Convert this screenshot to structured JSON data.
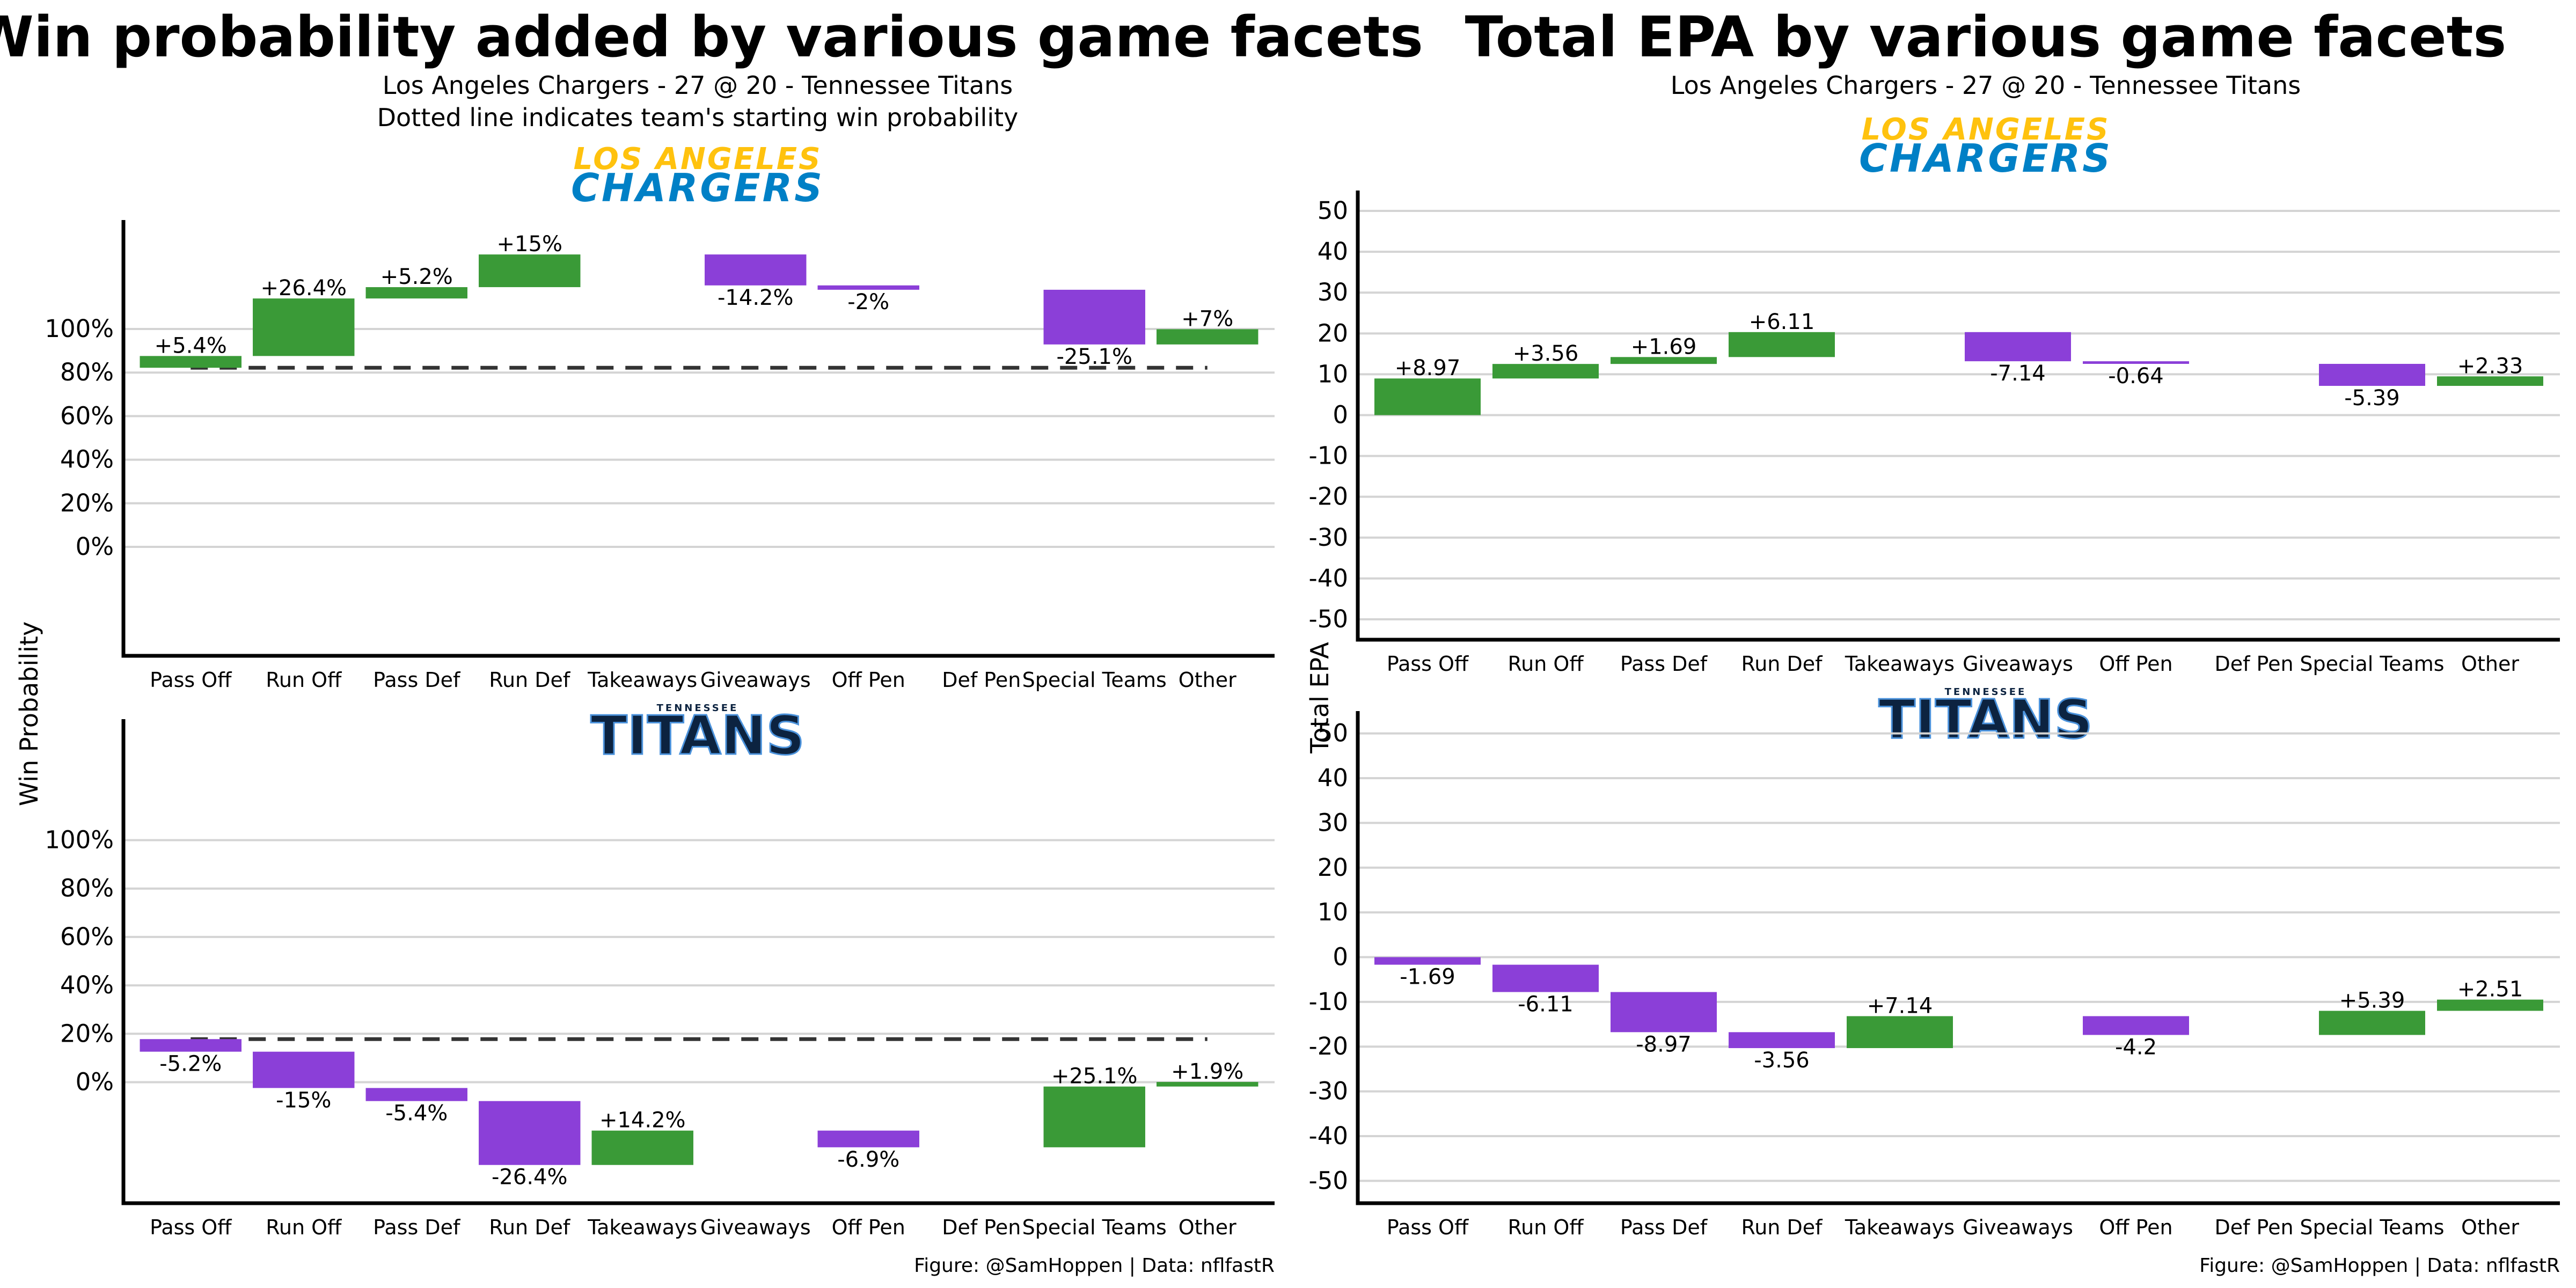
{
  "colors": {
    "positive": "#3a9a37",
    "negative": "#8b3fd8",
    "chargers_gold": "#ffc20e",
    "chargers_blue": "#0080c6",
    "titans_navy": "#0c2340",
    "titans_blue": "#4b92db"
  },
  "logos": {
    "chargers": {
      "line1": "LOS ANGELES",
      "line2": "CHARGERS"
    },
    "titans": {
      "line1": "TENNESSEE",
      "line2": "TITANS"
    }
  },
  "caption": "Figure: @SamHoppen | Data: nflfastR",
  "chart_data": [
    {
      "type": "bar",
      "title": "Win probability added by various game facets",
      "subtitle": [
        "Los Angeles Chargers - 27 @ 20 - Tennessee Titans",
        "Dotted line indicates team's starting win probability"
      ],
      "ylabel": "Win Probability",
      "categories": [
        "Pass Off",
        "Run Off",
        "Pass Def",
        "Run Def",
        "Takeaways",
        "Giveaways",
        "Off Pen",
        "Def Pen",
        "Special Teams",
        "Other"
      ],
      "y_ticks": [
        "0%",
        "20%",
        "40%",
        "60%",
        "80%",
        "100%"
      ],
      "grid": true,
      "panels": [
        {
          "team": "Los Angeles Chargers",
          "start_value": 82.2,
          "ylim": [
            -50,
            150
          ],
          "bars": [
            {
              "category": "Pass Off",
              "start": 82.2,
              "end": 87.6,
              "label": "+5.4%"
            },
            {
              "category": "Run Off",
              "start": 87.6,
              "end": 114.0,
              "label": "+26.4%"
            },
            {
              "category": "Pass Def",
              "start": 114.0,
              "end": 119.2,
              "label": "+5.2%"
            },
            {
              "category": "Run Def",
              "start": 119.2,
              "end": 134.2,
              "label": "+15%"
            },
            {
              "category": "Giveaways",
              "start": 134.2,
              "end": 120.0,
              "label": "-14.2%"
            },
            {
              "category": "Off Pen",
              "start": 120.0,
              "end": 118.0,
              "label": "-2%"
            },
            {
              "category": "Special Teams",
              "start": 118.0,
              "end": 92.9,
              "label": "-25.1%"
            },
            {
              "category": "Other",
              "start": 92.9,
              "end": 99.9,
              "label": "+7%"
            }
          ]
        },
        {
          "team": "Tennessee Titans",
          "start_value": 17.8,
          "ylim": [
            -50,
            150
          ],
          "bars": [
            {
              "category": "Pass Off",
              "start": 17.8,
              "end": 12.6,
              "label": "-5.2%"
            },
            {
              "category": "Run Off",
              "start": 12.6,
              "end": -2.4,
              "label": "-15%"
            },
            {
              "category": "Pass Def",
              "start": -2.4,
              "end": -7.8,
              "label": "-5.4%"
            },
            {
              "category": "Run Def",
              "start": -7.8,
              "end": -34.2,
              "label": "-26.4%"
            },
            {
              "category": "Takeaways",
              "start": -34.2,
              "end": -20.0,
              "label": "+14.2%"
            },
            {
              "category": "Off Pen",
              "start": -20.0,
              "end": -26.9,
              "label": "-6.9%"
            },
            {
              "category": "Special Teams",
              "start": -26.9,
              "end": -1.8,
              "label": "+25.1%"
            },
            {
              "category": "Other",
              "start": -1.8,
              "end": 0.1,
              "label": "+1.9%"
            }
          ]
        }
      ]
    },
    {
      "type": "bar",
      "title": "Total EPA by various game facets",
      "subtitle": [
        "Los Angeles Chargers - 27 @ 20 - Tennessee Titans"
      ],
      "ylabel": "Total EPA",
      "categories": [
        "Pass Off",
        "Run Off",
        "Pass Def",
        "Run Def",
        "Takeaways",
        "Giveaways",
        "Off Pen",
        "Def Pen",
        "Special Teams",
        "Other"
      ],
      "y_ticks": [
        "-50",
        "-40",
        "-30",
        "-20",
        "-10",
        "0",
        "10",
        "20",
        "30",
        "40",
        "50"
      ],
      "grid": true,
      "panels": [
        {
          "team": "Los Angeles Chargers",
          "ylim": [
            -55,
            55
          ],
          "bars": [
            {
              "category": "Pass Off",
              "start": 0,
              "end": 8.97,
              "label": "+8.97"
            },
            {
              "category": "Run Off",
              "start": 8.97,
              "end": 12.53,
              "label": "+3.56"
            },
            {
              "category": "Pass Def",
              "start": 12.53,
              "end": 14.22,
              "label": "+1.69"
            },
            {
              "category": "Run Def",
              "start": 14.22,
              "end": 20.33,
              "label": "+6.11"
            },
            {
              "category": "Giveaways",
              "start": 20.33,
              "end": 13.19,
              "label": "-7.14"
            },
            {
              "category": "Off Pen",
              "start": 13.19,
              "end": 12.55,
              "label": "-0.64"
            },
            {
              "category": "Special Teams",
              "start": 12.55,
              "end": 7.16,
              "label": "-5.39"
            },
            {
              "category": "Other",
              "start": 7.16,
              "end": 9.49,
              "label": "+2.33"
            }
          ]
        },
        {
          "team": "Tennessee Titans",
          "ylim": [
            -55,
            55
          ],
          "bars": [
            {
              "category": "Pass Off",
              "start": 0,
              "end": -1.69,
              "label": "-1.69"
            },
            {
              "category": "Run Off",
              "start": -1.69,
              "end": -7.8,
              "label": "-6.11"
            },
            {
              "category": "Pass Def",
              "start": -7.8,
              "end": -16.77,
              "label": "-8.97"
            },
            {
              "category": "Run Def",
              "start": -16.77,
              "end": -20.33,
              "label": "-3.56"
            },
            {
              "category": "Takeaways",
              "start": -20.33,
              "end": -13.19,
              "label": "+7.14"
            },
            {
              "category": "Off Pen",
              "start": -13.19,
              "end": -17.39,
              "label": "-4.2"
            },
            {
              "category": "Special Teams",
              "start": -17.39,
              "end": -12.0,
              "label": "+5.39"
            },
            {
              "category": "Other",
              "start": -12.0,
              "end": -9.49,
              "label": "+2.51"
            }
          ]
        }
      ]
    }
  ]
}
